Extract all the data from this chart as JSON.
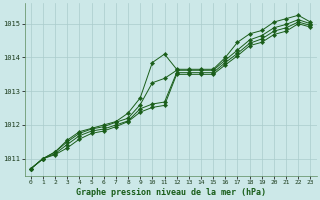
{
  "title": "Graphe pression niveau de la mer (hPa)",
  "bg_color": "#cce8e8",
  "grid_color": "#aacccc",
  "line_color": "#1a5e1a",
  "marker_color": "#1a5e1a",
  "xlim": [
    -0.5,
    23.5
  ],
  "ylim": [
    1010.5,
    1015.6
  ],
  "yticks": [
    1011,
    1012,
    1013,
    1014,
    1015
  ],
  "xticks": [
    0,
    1,
    2,
    3,
    4,
    5,
    6,
    7,
    8,
    9,
    10,
    11,
    12,
    13,
    14,
    15,
    16,
    17,
    18,
    19,
    20,
    21,
    22,
    23
  ],
  "series": [
    [
      1010.7,
      1011.0,
      1011.2,
      1011.55,
      1011.8,
      1011.9,
      1012.0,
      1012.1,
      1012.35,
      1012.8,
      1013.85,
      1014.1,
      1013.65,
      1013.65,
      1013.65,
      1013.65,
      1014.0,
      1014.45,
      1014.7,
      1014.8,
      1015.05,
      1015.15,
      1015.25,
      1015.05
    ],
    [
      1010.7,
      1011.0,
      1011.2,
      1011.5,
      1011.75,
      1011.88,
      1011.95,
      1012.08,
      1012.2,
      1012.6,
      1013.25,
      1013.38,
      1013.62,
      1013.62,
      1013.62,
      1013.62,
      1013.92,
      1014.22,
      1014.52,
      1014.65,
      1014.88,
      1014.98,
      1015.12,
      1015.0
    ],
    [
      1010.7,
      1011.0,
      1011.15,
      1011.42,
      1011.68,
      1011.82,
      1011.88,
      1012.0,
      1012.12,
      1012.48,
      1012.62,
      1012.68,
      1013.55,
      1013.55,
      1013.55,
      1013.55,
      1013.85,
      1014.12,
      1014.42,
      1014.55,
      1014.78,
      1014.88,
      1015.05,
      1014.95
    ],
    [
      1010.7,
      1011.0,
      1011.12,
      1011.32,
      1011.58,
      1011.75,
      1011.82,
      1011.95,
      1012.1,
      1012.38,
      1012.52,
      1012.58,
      1013.5,
      1013.5,
      1013.5,
      1013.5,
      1013.78,
      1014.05,
      1014.35,
      1014.45,
      1014.68,
      1014.78,
      1015.0,
      1014.9
    ]
  ]
}
